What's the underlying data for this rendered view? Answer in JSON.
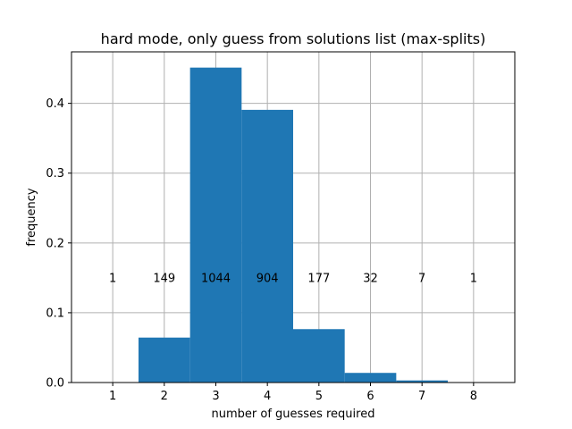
{
  "chart_data": {
    "type": "bar",
    "title": "hard mode, only guess from solutions list (max-splits)",
    "xlabel": "number of guesses required",
    "ylabel": "frequency",
    "categories": [
      "1",
      "2",
      "3",
      "4",
      "5",
      "6",
      "7",
      "8"
    ],
    "x": [
      1,
      2,
      3,
      4,
      5,
      6,
      7,
      8
    ],
    "counts": [
      1,
      149,
      1044,
      904,
      177,
      32,
      7,
      1
    ],
    "values": [
      0.0004,
      0.0644,
      0.4512,
      0.3907,
      0.0765,
      0.0138,
      0.003,
      0.0004
    ],
    "xlim": [
      0.2,
      8.8
    ],
    "ylim": [
      0,
      0.4738
    ],
    "yticks": [
      "0.0",
      "0.1",
      "0.2",
      "0.3",
      "0.4"
    ],
    "ytick_values": [
      0.0,
      0.1,
      0.2,
      0.3,
      0.4
    ],
    "count_label_y": 0.15,
    "grid": true,
    "bar_color": "#1f77b4",
    "grid_color": "#b0b0b0"
  }
}
